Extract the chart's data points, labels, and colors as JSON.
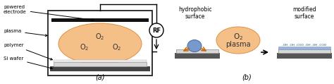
{
  "fig_width": 4.74,
  "fig_height": 1.19,
  "dpi": 100,
  "bg_color": "#ffffff",
  "plasma_color": "#f5c088",
  "plasma_edge_color": "#e09040",
  "box_edge_color": "#222222",
  "electrode_color": "#111111",
  "wafer_light_color": "#d8d8d8",
  "wafer_dark_color": "#444444",
  "polymer_color": "#eeeeee",
  "blue_drop_color": "#7799cc",
  "blue_drop_edge": "#4466aa",
  "orange_arrow": "#cc6600",
  "text_color": "#000000",
  "gray_text": "#333333",
  "label_a": "(a)",
  "label_b": "(b)",
  "text_powered": "powered\nelectrode",
  "text_plasma": "plasma",
  "text_polymer": "polymer",
  "text_siwafer": "Si wafer",
  "text_hydrophobic": "hydrophobic\nsurface",
  "text_modified": "modified\nsurface",
  "text_plasma_label": "plasma",
  "text_RF": "RF",
  "functional_groups": "-OH -OH -COO -OH -OH -COO"
}
